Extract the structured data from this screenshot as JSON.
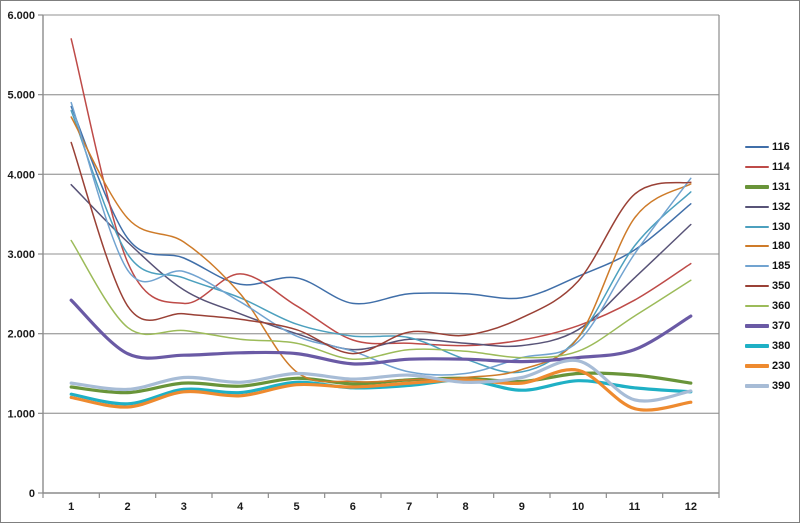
{
  "chart_data": {
    "type": "line",
    "title": "",
    "xlabel": "",
    "ylabel": "",
    "x": [
      1,
      2,
      3,
      4,
      5,
      6,
      7,
      8,
      9,
      10,
      11,
      12
    ],
    "x_tick_labels": [
      "1",
      "2",
      "3",
      "4",
      "5",
      "6",
      "7",
      "8",
      "9",
      "10",
      "11",
      "12"
    ],
    "y_tick_labels": [
      "0",
      "1.000",
      "2.000",
      "3.000",
      "4.000",
      "5.000",
      "6.000"
    ],
    "ylim": [
      0,
      6
    ],
    "y_step": 1,
    "grid": true,
    "grid_color": "#a6a6a6",
    "frame_color": "#8c8c8c",
    "legend_position": "right",
    "series": [
      {
        "name": "116",
        "color": "#406FA9",
        "thick": false,
        "values": [
          4.85,
          3.2,
          2.95,
          2.62,
          2.7,
          2.38,
          2.5,
          2.5,
          2.45,
          2.72,
          3.05,
          3.63
        ]
      },
      {
        "name": "114",
        "color": "#BE4B48",
        "thick": false,
        "values": [
          5.7,
          2.9,
          2.38,
          2.75,
          2.35,
          1.92,
          1.88,
          1.85,
          1.92,
          2.1,
          2.42,
          2.88
        ]
      },
      {
        "name": "131",
        "color": "#699439",
        "thick": true,
        "values": [
          1.33,
          1.26,
          1.38,
          1.34,
          1.44,
          1.37,
          1.42,
          1.44,
          1.4,
          1.5,
          1.48,
          1.38
        ]
      },
      {
        "name": "132",
        "color": "#585377",
        "thick": false,
        "values": [
          3.87,
          3.15,
          2.55,
          2.25,
          2.0,
          1.8,
          1.93,
          1.88,
          1.85,
          2.05,
          2.7,
          3.37
        ]
      },
      {
        "name": "130",
        "color": "#4CA0BE",
        "thick": false,
        "values": [
          4.8,
          3.0,
          2.7,
          2.45,
          2.12,
          1.97,
          1.95,
          1.68,
          1.52,
          1.95,
          3.1,
          3.78
        ]
      },
      {
        "name": "180",
        "color": "#CE7B29",
        "thick": false,
        "values": [
          4.72,
          3.45,
          3.15,
          2.5,
          1.52,
          1.4,
          1.42,
          1.45,
          1.55,
          1.95,
          3.45,
          3.88
        ]
      },
      {
        "name": "185",
        "color": "#71A3D0",
        "thick": false,
        "values": [
          4.9,
          2.8,
          2.78,
          2.4,
          1.97,
          1.78,
          1.52,
          1.5,
          1.7,
          1.9,
          3.0,
          3.95
        ]
      },
      {
        "name": "350",
        "color": "#9A4136",
        "thick": false,
        "values": [
          4.4,
          2.35,
          2.25,
          2.18,
          2.05,
          1.75,
          2.02,
          1.98,
          2.2,
          2.66,
          3.75,
          3.9
        ]
      },
      {
        "name": "360",
        "color": "#9CBB59",
        "thick": false,
        "values": [
          3.17,
          2.08,
          2.04,
          1.93,
          1.88,
          1.68,
          1.8,
          1.78,
          1.7,
          1.78,
          2.22,
          2.67
        ]
      },
      {
        "name": "370",
        "color": "#6A5AA5",
        "thick": true,
        "values": [
          2.42,
          1.75,
          1.73,
          1.76,
          1.75,
          1.62,
          1.68,
          1.68,
          1.65,
          1.7,
          1.8,
          2.22
        ]
      },
      {
        "name": "380",
        "color": "#1FB0C5",
        "thick": true,
        "values": [
          1.24,
          1.12,
          1.3,
          1.26,
          1.39,
          1.32,
          1.35,
          1.42,
          1.29,
          1.41,
          1.32,
          1.27
        ]
      },
      {
        "name": "230",
        "color": "#EE8A2F",
        "thick": true,
        "values": [
          1.2,
          1.08,
          1.27,
          1.22,
          1.36,
          1.33,
          1.38,
          1.42,
          1.38,
          1.54,
          1.06,
          1.14
        ]
      },
      {
        "name": "390",
        "color": "#A7BCD6",
        "thick": true,
        "values": [
          1.38,
          1.3,
          1.45,
          1.39,
          1.5,
          1.43,
          1.48,
          1.39,
          1.45,
          1.66,
          1.17,
          1.28
        ]
      }
    ]
  }
}
